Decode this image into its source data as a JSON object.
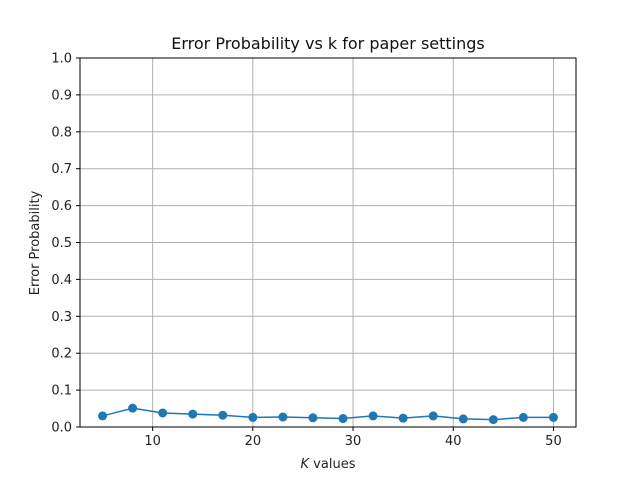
{
  "chart_data": {
    "type": "line",
    "title": "Error Probability vs k for paper settings",
    "xlabel_italic": "K",
    "xlabel_rest": " values",
    "ylabel": "Error Probability",
    "xlim": [
      2.75,
      52.25
    ],
    "ylim": [
      0.0,
      1.0
    ],
    "xticks": [
      10,
      20,
      30,
      40,
      50
    ],
    "yticks": [
      0.0,
      0.1,
      0.2,
      0.3,
      0.4,
      0.5,
      0.6,
      0.7,
      0.8,
      0.9,
      1.0
    ],
    "grid": true,
    "series": [
      {
        "color": "#1f77b4",
        "marker": "circle",
        "x": [
          5,
          8,
          11,
          14,
          17,
          20,
          23,
          26,
          29,
          32,
          35,
          38,
          41,
          44,
          47,
          50
        ],
        "y": [
          0.03,
          0.051,
          0.038,
          0.035,
          0.032,
          0.026,
          0.027,
          0.025,
          0.023,
          0.03,
          0.024,
          0.03,
          0.022,
          0.02,
          0.026,
          0.026
        ]
      }
    ]
  }
}
